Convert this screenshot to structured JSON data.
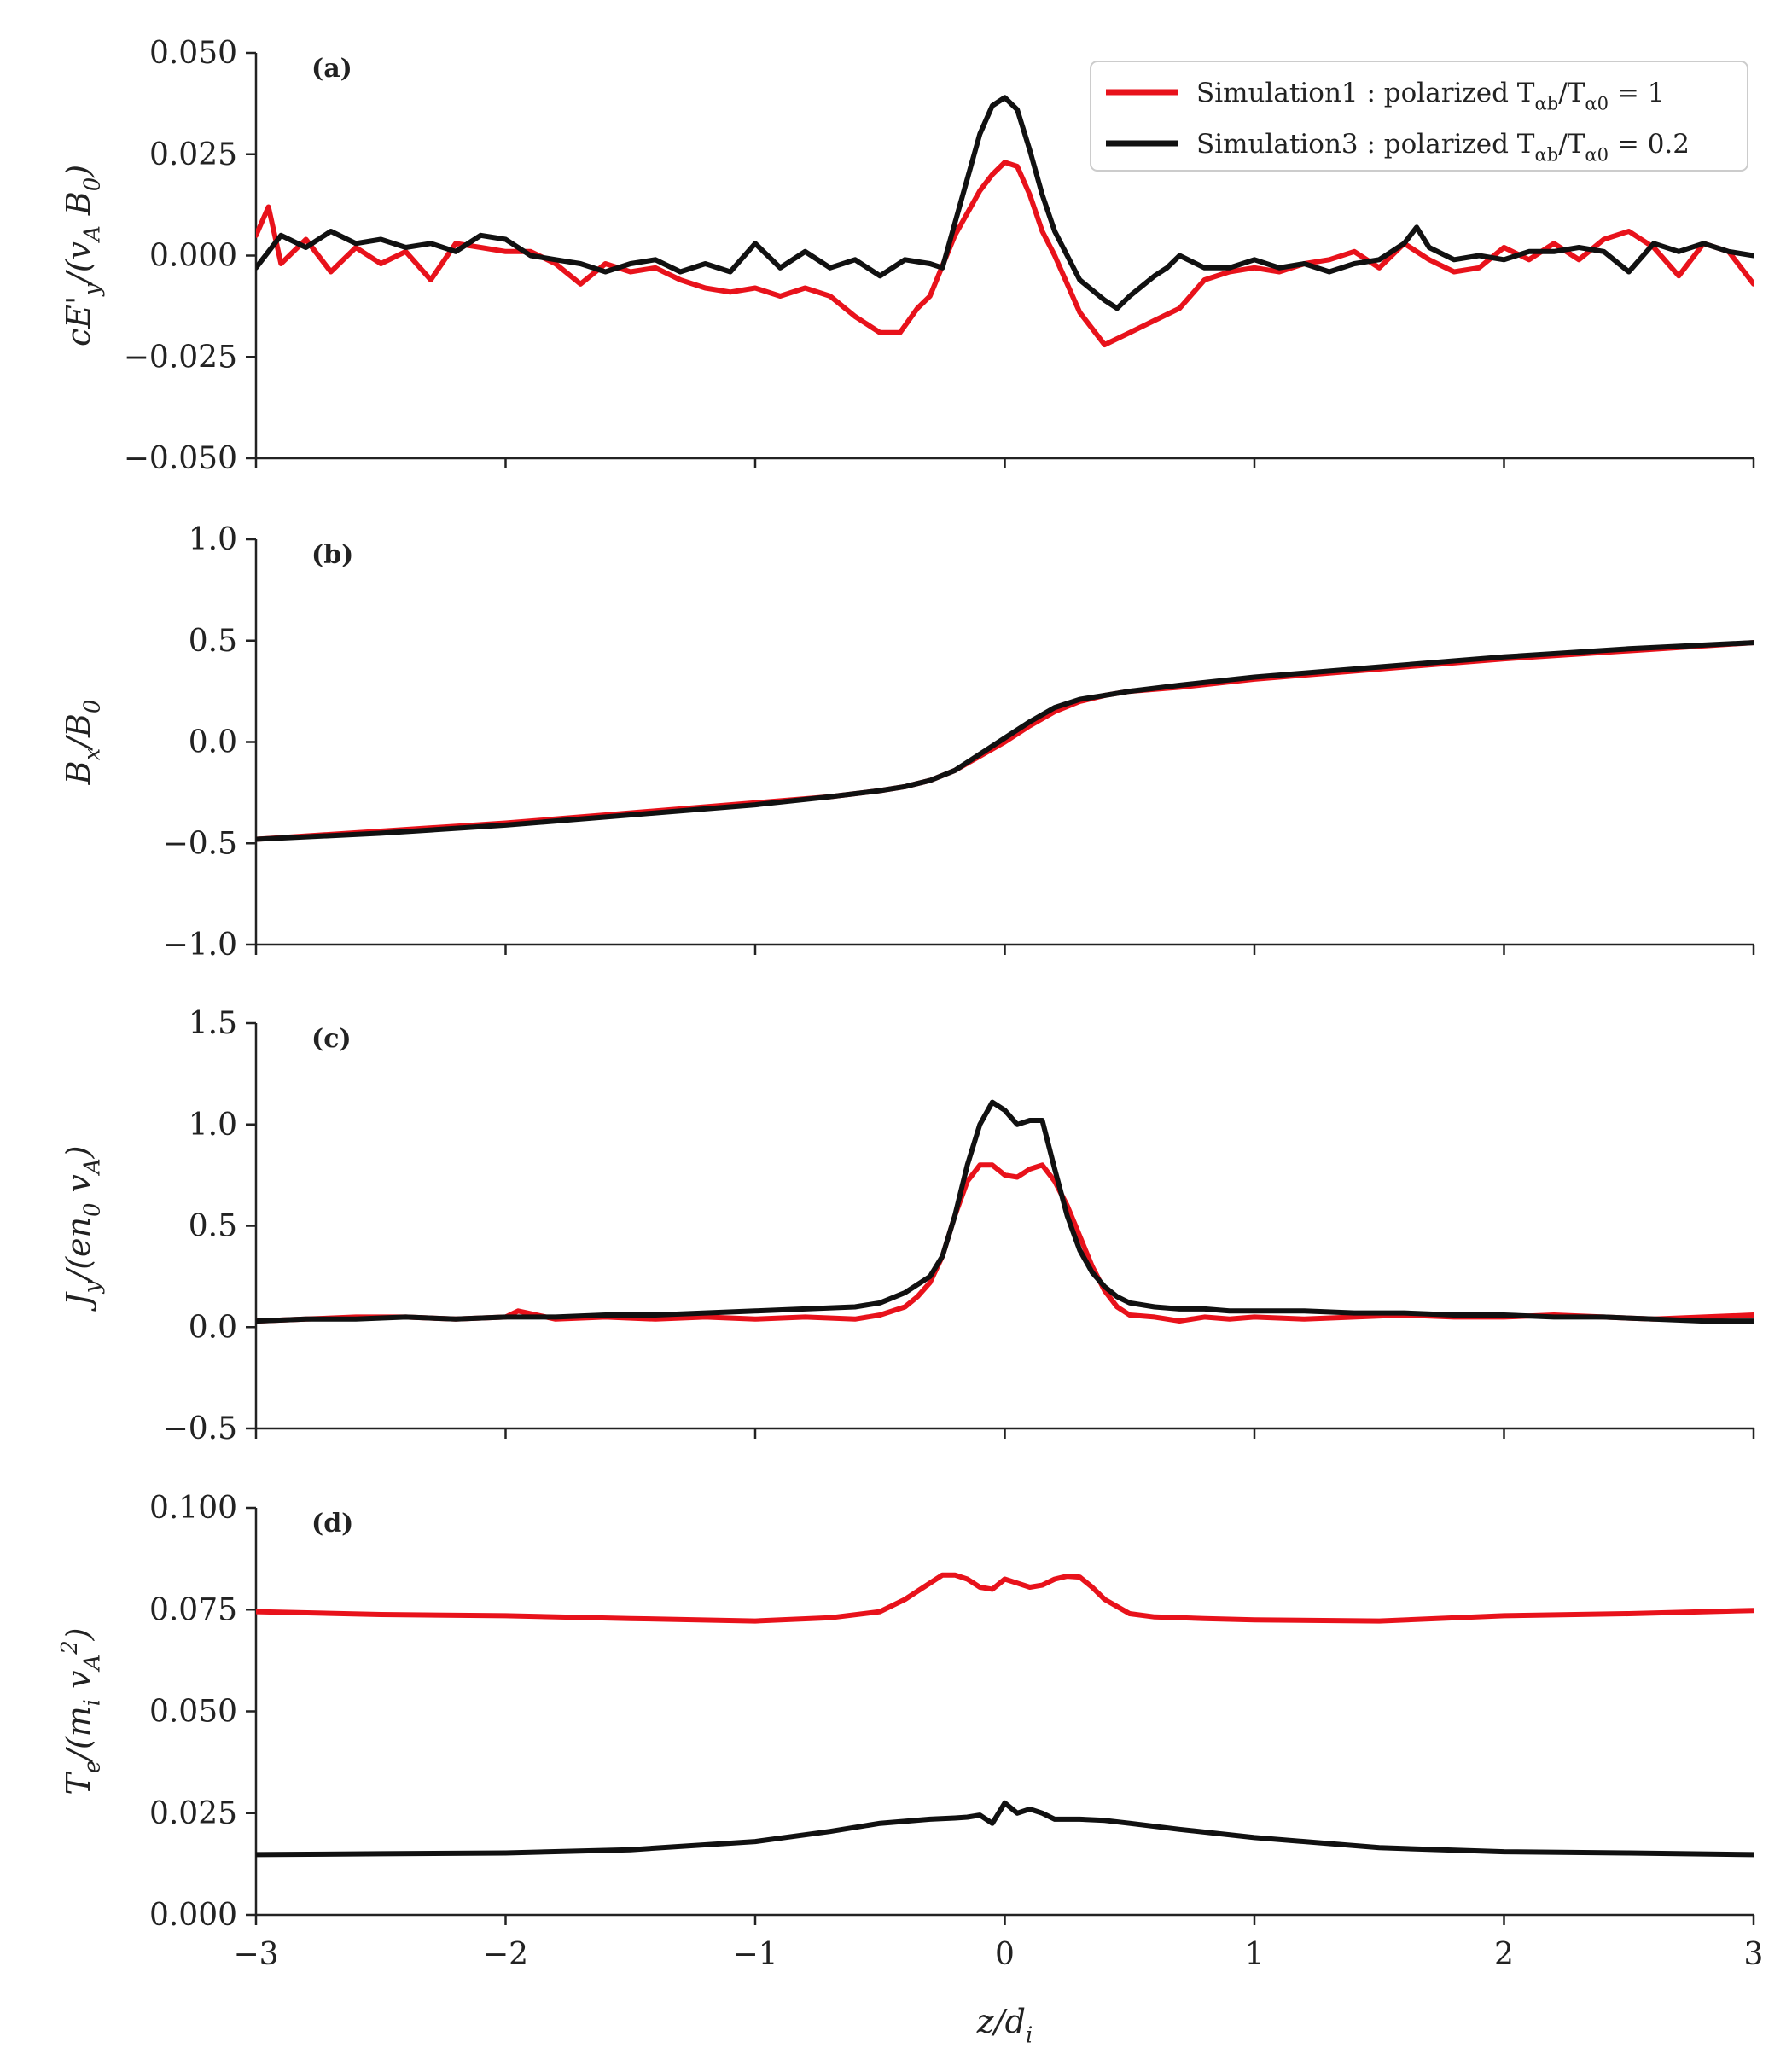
{
  "figure": {
    "xlabel": "z/d_i",
    "xlim": [
      -3,
      3
    ],
    "xticks": [
      -3,
      -2,
      -1,
      0,
      1,
      2,
      3
    ],
    "xtick_labels": [
      "−3",
      "−2",
      "−1",
      "0",
      "1",
      "2",
      "3"
    ]
  },
  "legend": {
    "placement": "top-right of panel (a)",
    "entries": [
      {
        "series": "sim1",
        "label": "Simulation1 :  polarized T_αb/T_α0 = 1",
        "color": "#e8121b"
      },
      {
        "series": "sim3",
        "label": "Simulation3 :  polarized T_αb/T_α0 = 0.2",
        "color": "#111111"
      }
    ]
  },
  "colors": {
    "sim1": "#e8121b",
    "sim3": "#111111"
  },
  "chart_data": [
    {
      "panel": "(a)",
      "type": "line",
      "ylabel": "cE'_y/(v_A B_0)",
      "ylim": [
        -0.05,
        0.05
      ],
      "yticks": [
        -0.05,
        -0.025,
        0.0,
        0.025,
        0.05
      ],
      "ytick_labels": [
        "−0.050",
        "−0.025",
        "0.000",
        "0.025",
        "0.050"
      ],
      "series": [
        {
          "name": "Simulation1",
          "color": "#e8121b",
          "x": [
            -3.0,
            -2.95,
            -2.9,
            -2.8,
            -2.7,
            -2.6,
            -2.5,
            -2.4,
            -2.3,
            -2.2,
            -2.1,
            -2.0,
            -1.9,
            -1.8,
            -1.7,
            -1.6,
            -1.5,
            -1.4,
            -1.3,
            -1.2,
            -1.1,
            -1.0,
            -0.9,
            -0.8,
            -0.7,
            -0.6,
            -0.5,
            -0.42,
            -0.35,
            -0.3,
            -0.2,
            -0.1,
            -0.05,
            0.0,
            0.05,
            0.1,
            0.15,
            0.2,
            0.3,
            0.4,
            0.5,
            0.6,
            0.7,
            0.8,
            0.9,
            1.0,
            1.1,
            1.2,
            1.3,
            1.4,
            1.5,
            1.6,
            1.7,
            1.8,
            1.9,
            2.0,
            2.1,
            2.2,
            2.3,
            2.4,
            2.5,
            2.6,
            2.7,
            2.8,
            2.9,
            3.0
          ],
          "y": [
            0.005,
            0.012,
            -0.002,
            0.004,
            -0.004,
            0.002,
            -0.002,
            0.001,
            -0.006,
            0.003,
            0.002,
            0.001,
            0.001,
            -0.002,
            -0.007,
            -0.002,
            -0.004,
            -0.003,
            -0.006,
            -0.008,
            -0.009,
            -0.008,
            -0.01,
            -0.008,
            -0.01,
            -0.015,
            -0.019,
            -0.019,
            -0.013,
            -0.01,
            0.005,
            0.016,
            0.02,
            0.023,
            0.022,
            0.015,
            0.006,
            0.0,
            -0.014,
            -0.022,
            -0.019,
            -0.016,
            -0.013,
            -0.006,
            -0.004,
            -0.003,
            -0.004,
            -0.002,
            -0.001,
            0.001,
            -0.003,
            0.003,
            -0.001,
            -0.004,
            -0.003,
            0.002,
            -0.001,
            0.003,
            -0.001,
            0.004,
            0.006,
            0.002,
            -0.005,
            0.003,
            0.001,
            -0.007
          ]
        },
        {
          "name": "Simulation3",
          "color": "#111111",
          "x": [
            -3.0,
            -2.9,
            -2.8,
            -2.7,
            -2.6,
            -2.5,
            -2.4,
            -2.3,
            -2.2,
            -2.1,
            -2.0,
            -1.9,
            -1.8,
            -1.7,
            -1.6,
            -1.5,
            -1.4,
            -1.3,
            -1.2,
            -1.1,
            -1.0,
            -0.9,
            -0.8,
            -0.7,
            -0.6,
            -0.5,
            -0.4,
            -0.3,
            -0.25,
            -0.2,
            -0.1,
            -0.05,
            0.0,
            0.05,
            0.1,
            0.15,
            0.2,
            0.3,
            0.4,
            0.45,
            0.5,
            0.6,
            0.65,
            0.7,
            0.8,
            0.9,
            1.0,
            1.1,
            1.2,
            1.3,
            1.4,
            1.5,
            1.6,
            1.65,
            1.7,
            1.8,
            1.9,
            2.0,
            2.1,
            2.2,
            2.3,
            2.4,
            2.5,
            2.6,
            2.7,
            2.8,
            2.9,
            3.0
          ],
          "y": [
            -0.003,
            0.005,
            0.002,
            0.006,
            0.003,
            0.004,
            0.002,
            0.003,
            0.001,
            0.005,
            0.004,
            0.0,
            -0.001,
            -0.002,
            -0.004,
            -0.002,
            -0.001,
            -0.004,
            -0.002,
            -0.004,
            0.003,
            -0.003,
            0.001,
            -0.003,
            -0.001,
            -0.005,
            -0.001,
            -0.002,
            -0.003,
            0.008,
            0.03,
            0.037,
            0.039,
            0.036,
            0.026,
            0.015,
            0.006,
            -0.006,
            -0.011,
            -0.013,
            -0.01,
            -0.005,
            -0.003,
            0.0,
            -0.003,
            -0.003,
            -0.001,
            -0.003,
            -0.002,
            -0.004,
            -0.002,
            -0.001,
            0.003,
            0.007,
            0.002,
            -0.001,
            0.0,
            -0.001,
            0.001,
            0.001,
            0.002,
            0.001,
            -0.004,
            0.003,
            0.001,
            0.003,
            0.001,
            0.0
          ]
        }
      ]
    },
    {
      "panel": "(b)",
      "type": "line",
      "ylabel": "B_x/B_0",
      "ylim": [
        -1.0,
        1.0
      ],
      "yticks": [
        -1.0,
        -0.5,
        0.0,
        0.5,
        1.0
      ],
      "ytick_labels": [
        "−1.0",
        "−0.5",
        "0.0",
        "0.5",
        "1.0"
      ],
      "series": [
        {
          "name": "Simulation1",
          "color": "#e8121b",
          "x": [
            -3.0,
            -2.5,
            -2.0,
            -1.5,
            -1.0,
            -0.7,
            -0.5,
            -0.4,
            -0.3,
            -0.2,
            -0.1,
            0.0,
            0.1,
            0.2,
            0.3,
            0.4,
            0.5,
            0.7,
            1.0,
            1.5,
            2.0,
            2.5,
            3.0
          ],
          "y": [
            -0.48,
            -0.44,
            -0.4,
            -0.35,
            -0.3,
            -0.27,
            -0.24,
            -0.22,
            -0.19,
            -0.14,
            -0.07,
            0.0,
            0.08,
            0.15,
            0.2,
            0.23,
            0.25,
            0.27,
            0.31,
            0.36,
            0.41,
            0.45,
            0.49
          ]
        },
        {
          "name": "Simulation3",
          "color": "#111111",
          "x": [
            -3.0,
            -2.5,
            -2.0,
            -1.5,
            -1.0,
            -0.7,
            -0.5,
            -0.4,
            -0.3,
            -0.2,
            -0.1,
            0.0,
            0.1,
            0.2,
            0.3,
            0.4,
            0.5,
            0.7,
            1.0,
            1.5,
            2.0,
            2.5,
            3.0
          ],
          "y": [
            -0.48,
            -0.45,
            -0.41,
            -0.36,
            -0.31,
            -0.27,
            -0.24,
            -0.22,
            -0.19,
            -0.14,
            -0.06,
            0.02,
            0.1,
            0.17,
            0.21,
            0.23,
            0.25,
            0.28,
            0.32,
            0.37,
            0.42,
            0.46,
            0.49
          ]
        }
      ]
    },
    {
      "panel": "(c)",
      "type": "line",
      "ylabel": "J_y/(en_0 v_A)",
      "ylim": [
        -0.5,
        1.5
      ],
      "yticks": [
        -0.5,
        0.0,
        0.5,
        1.0,
        1.5
      ],
      "ytick_labels": [
        "−0.5",
        "0.0",
        "0.5",
        "1.0",
        "1.5"
      ],
      "series": [
        {
          "name": "Simulation1",
          "color": "#e8121b",
          "x": [
            -3.0,
            -2.8,
            -2.6,
            -2.4,
            -2.2,
            -2.0,
            -1.95,
            -1.8,
            -1.6,
            -1.4,
            -1.2,
            -1.0,
            -0.8,
            -0.6,
            -0.5,
            -0.4,
            -0.35,
            -0.3,
            -0.25,
            -0.2,
            -0.15,
            -0.1,
            -0.05,
            0.0,
            0.05,
            0.1,
            0.15,
            0.2,
            0.25,
            0.3,
            0.35,
            0.4,
            0.45,
            0.5,
            0.6,
            0.7,
            0.8,
            0.9,
            1.0,
            1.2,
            1.4,
            1.6,
            1.8,
            2.0,
            2.2,
            2.4,
            2.6,
            2.8,
            3.0
          ],
          "y": [
            0.03,
            0.04,
            0.05,
            0.05,
            0.04,
            0.05,
            0.08,
            0.04,
            0.05,
            0.04,
            0.05,
            0.04,
            0.05,
            0.04,
            0.06,
            0.1,
            0.15,
            0.22,
            0.35,
            0.55,
            0.72,
            0.8,
            0.8,
            0.75,
            0.74,
            0.78,
            0.8,
            0.72,
            0.6,
            0.45,
            0.3,
            0.18,
            0.1,
            0.06,
            0.05,
            0.03,
            0.05,
            0.04,
            0.05,
            0.04,
            0.05,
            0.06,
            0.05,
            0.05,
            0.06,
            0.05,
            0.04,
            0.05,
            0.06
          ]
        },
        {
          "name": "Simulation3",
          "color": "#111111",
          "x": [
            -3.0,
            -2.8,
            -2.6,
            -2.4,
            -2.2,
            -2.0,
            -1.8,
            -1.6,
            -1.4,
            -1.2,
            -1.0,
            -0.8,
            -0.6,
            -0.5,
            -0.4,
            -0.3,
            -0.25,
            -0.2,
            -0.15,
            -0.1,
            -0.05,
            0.0,
            0.05,
            0.1,
            0.15,
            0.2,
            0.25,
            0.3,
            0.35,
            0.4,
            0.45,
            0.5,
            0.6,
            0.7,
            0.8,
            0.9,
            1.0,
            1.2,
            1.4,
            1.6,
            1.8,
            2.0,
            2.2,
            2.4,
            2.6,
            2.8,
            3.0
          ],
          "y": [
            0.03,
            0.04,
            0.04,
            0.05,
            0.04,
            0.05,
            0.05,
            0.06,
            0.06,
            0.07,
            0.08,
            0.09,
            0.1,
            0.12,
            0.17,
            0.25,
            0.35,
            0.55,
            0.8,
            1.0,
            1.11,
            1.07,
            1.0,
            1.02,
            1.02,
            0.78,
            0.55,
            0.38,
            0.27,
            0.2,
            0.15,
            0.12,
            0.1,
            0.09,
            0.09,
            0.08,
            0.08,
            0.08,
            0.07,
            0.07,
            0.06,
            0.06,
            0.05,
            0.05,
            0.04,
            0.03,
            0.03
          ]
        }
      ]
    },
    {
      "panel": "(d)",
      "type": "line",
      "ylabel": "T_e/(m_i v_A^2)",
      "ylim": [
        0.0,
        0.1
      ],
      "yticks": [
        0.0,
        0.025,
        0.05,
        0.075,
        0.1
      ],
      "ytick_labels": [
        "0.000",
        "0.025",
        "0.050",
        "0.075",
        "0.100"
      ],
      "series": [
        {
          "name": "Simulation1",
          "color": "#e8121b",
          "x": [
            -3.0,
            -2.5,
            -2.0,
            -1.5,
            -1.0,
            -0.7,
            -0.5,
            -0.4,
            -0.3,
            -0.25,
            -0.2,
            -0.15,
            -0.1,
            -0.05,
            0.0,
            0.05,
            0.1,
            0.15,
            0.2,
            0.25,
            0.3,
            0.35,
            0.4,
            0.5,
            0.6,
            0.8,
            1.0,
            1.5,
            2.0,
            2.5,
            3.0
          ],
          "y": [
            0.0745,
            0.0738,
            0.0735,
            0.0728,
            0.0722,
            0.073,
            0.0745,
            0.0775,
            0.0815,
            0.0835,
            0.0835,
            0.0825,
            0.0805,
            0.08,
            0.0825,
            0.0815,
            0.0805,
            0.081,
            0.0825,
            0.0832,
            0.083,
            0.0805,
            0.0775,
            0.074,
            0.0732,
            0.0728,
            0.0725,
            0.0722,
            0.0735,
            0.074,
            0.0748
          ]
        },
        {
          "name": "Simulation3",
          "color": "#111111",
          "x": [
            -3.0,
            -2.5,
            -2.0,
            -1.5,
            -1.0,
            -0.7,
            -0.5,
            -0.3,
            -0.2,
            -0.15,
            -0.1,
            -0.05,
            0.0,
            0.05,
            0.1,
            0.15,
            0.2,
            0.3,
            0.4,
            0.5,
            0.7,
            1.0,
            1.5,
            2.0,
            2.5,
            3.0
          ],
          "y": [
            0.0148,
            0.015,
            0.0152,
            0.016,
            0.018,
            0.0205,
            0.0225,
            0.0235,
            0.0238,
            0.024,
            0.0245,
            0.0225,
            0.0275,
            0.025,
            0.026,
            0.025,
            0.0235,
            0.0235,
            0.0232,
            0.0225,
            0.021,
            0.019,
            0.0165,
            0.0155,
            0.0152,
            0.0148
          ]
        }
      ]
    }
  ]
}
